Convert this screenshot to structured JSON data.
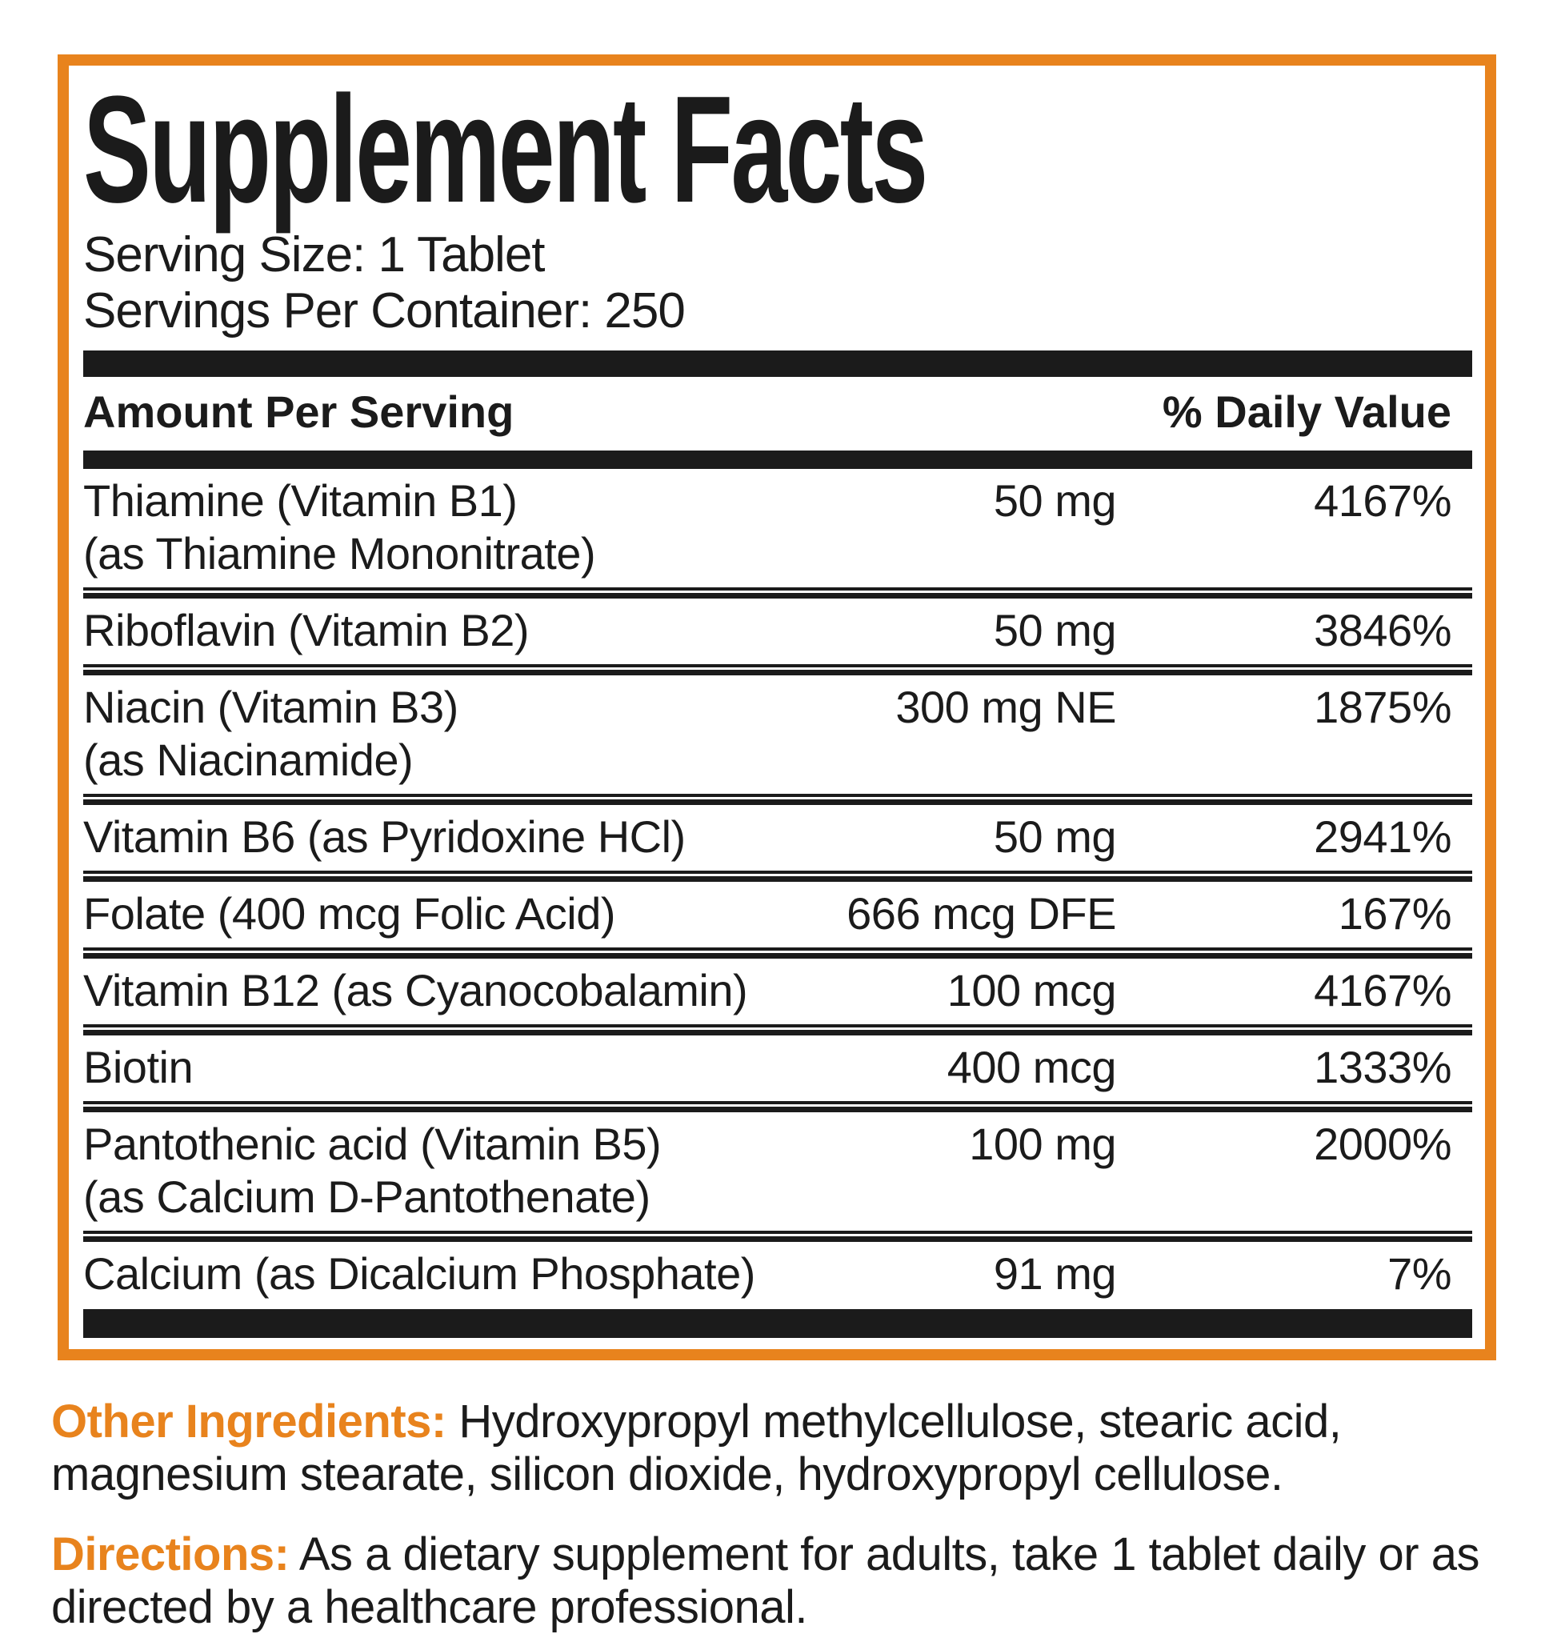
{
  "colors": {
    "accent_orange": "#E8831D",
    "text_black": "#1B1B1B"
  },
  "panel": {
    "title": "Supplement Facts",
    "serving_size": "Serving Size: 1 Tablet",
    "servings_per_container": "Servings Per Container: 250",
    "amount_header": "Amount Per Serving",
    "dv_header": "% Daily Value",
    "rows": [
      {
        "name": "Thiamine (Vitamin B1)",
        "name2": "(as Thiamine Mononitrate)",
        "amount": "50 mg",
        "dv": "4167%"
      },
      {
        "name": "Riboflavin (Vitamin B2)",
        "amount": "50 mg",
        "dv": "3846%"
      },
      {
        "name": "Niacin (Vitamin B3)",
        "name2": "(as Niacinamide)",
        "amount": "300 mg NE",
        "dv": "1875%"
      },
      {
        "name": "Vitamin B6 (as Pyridoxine HCl)",
        "amount": "50 mg",
        "dv": "2941%"
      },
      {
        "name": "Folate (400 mcg Folic Acid)",
        "amount": "666 mcg DFE",
        "dv": "167%"
      },
      {
        "name": "Vitamin B12 (as Cyanocobalamin)",
        "amount": "100 mcg",
        "dv": "4167%"
      },
      {
        "name": "Biotin",
        "amount": "400 mcg",
        "dv": "1333%"
      },
      {
        "name": "Pantothenic acid (Vitamin B5)",
        "name2": "(as Calcium D-Pantothenate)",
        "amount": "100 mg",
        "dv": "2000%"
      },
      {
        "name": "Calcium (as Dicalcium Phosphate)",
        "amount": "91 mg",
        "dv": "7%"
      }
    ]
  },
  "footer": {
    "other_ingredients_label": "Other Ingredients:",
    "other_ingredients_text": "Hydroxypropyl methylcellulose, stearic acid, magnesium stearate, silicon dioxide, hydroxypropyl cellulose.",
    "directions_label": "Directions:",
    "directions_text": "As a dietary supplement for adults, take 1 tablet daily or as directed by a healthcare professional."
  }
}
